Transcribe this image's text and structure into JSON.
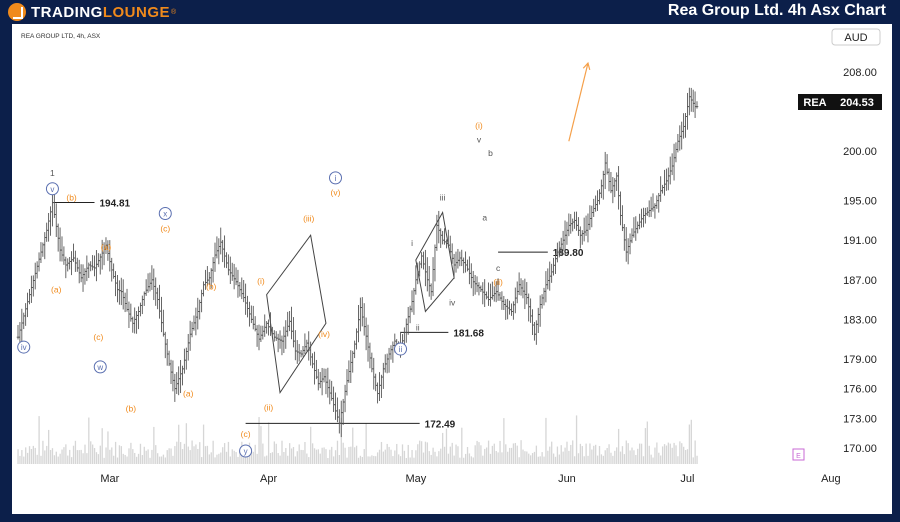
{
  "header": {
    "logo_part1": "TRADING",
    "logo_part2": "LOUNGE",
    "logo_tm": "®",
    "chart_title": "Rea Group Ltd. 4h Asx Chart"
  },
  "chart_data": {
    "type": "candlestick",
    "symbol_info": "REA GROUP LTD, 4h, ASX",
    "currency": "AUD",
    "last_price": {
      "symbol": "REA",
      "value": "204.53"
    },
    "y_ticks": [
      "208.00",
      "200.00",
      "195.00",
      "191.00",
      "187.00",
      "183.00",
      "179.00",
      "176.00",
      "173.00",
      "170.00"
    ],
    "y_tick_values": [
      208,
      200,
      195,
      191,
      187,
      183,
      179,
      176,
      173,
      170
    ],
    "x_ticks": [
      "Mar",
      "Apr",
      "May",
      "Jun",
      "Jul",
      "Aug"
    ],
    "ylim": [
      168.4,
      210.8
    ],
    "close_path": [
      [
        0,
        181.2
      ],
      [
        6,
        185.5
      ],
      [
        12,
        189.8
      ],
      [
        15,
        192.0
      ],
      [
        18,
        194.8
      ],
      [
        22,
        190.0
      ],
      [
        25,
        188.5
      ],
      [
        29,
        189.2
      ],
      [
        33,
        187.2
      ],
      [
        37,
        188.5
      ],
      [
        40,
        188.2
      ],
      [
        43,
        189.3
      ],
      [
        46,
        190.5
      ],
      [
        49,
        188.0
      ],
      [
        52,
        186.0
      ],
      [
        54,
        185.8
      ],
      [
        57,
        184.0
      ],
      [
        60,
        182.6
      ],
      [
        63,
        183.8
      ],
      [
        66,
        185.6
      ],
      [
        70,
        187.0
      ],
      [
        73,
        185.0
      ],
      [
        76,
        181.5
      ],
      [
        79,
        178.5
      ],
      [
        82,
        176.0
      ],
      [
        86,
        178.0
      ],
      [
        90,
        181.5
      ],
      [
        94,
        183.8
      ],
      [
        97,
        186.5
      ],
      [
        100,
        187.2
      ],
      [
        103,
        189.5
      ],
      [
        106,
        190.8
      ],
      [
        110,
        188.0
      ],
      [
        114,
        186.8
      ],
      [
        118,
        185.2
      ],
      [
        122,
        183.0
      ],
      [
        126,
        181.0
      ],
      [
        130,
        182.6
      ],
      [
        134,
        181.2
      ],
      [
        138,
        180.8
      ],
      [
        142,
        182.8
      ],
      [
        145,
        179.8
      ],
      [
        148,
        179.5
      ],
      [
        151,
        180.6
      ],
      [
        154,
        178.5
      ],
      [
        157,
        176.5
      ],
      [
        160,
        177.2
      ],
      [
        164,
        175.0
      ],
      [
        168,
        172.5
      ],
      [
        172,
        176.8
      ],
      [
        176,
        180.5
      ],
      [
        179,
        184.2
      ],
      [
        182,
        181.3
      ],
      [
        185,
        178.0
      ],
      [
        188,
        175.5
      ],
      [
        191,
        178.0
      ],
      [
        194,
        179.5
      ],
      [
        197,
        180.8
      ],
      [
        200,
        180.0
      ],
      [
        203,
        182.5
      ],
      [
        206,
        184.8
      ],
      [
        208,
        187.0
      ],
      [
        211,
        189.4
      ],
      [
        214,
        187.0
      ],
      [
        216,
        185.8
      ],
      [
        219,
        192.5
      ],
      [
        222,
        191.0
      ],
      [
        225,
        190.5
      ],
      [
        228,
        188.5
      ],
      [
        231,
        189.2
      ],
      [
        234,
        188.5
      ],
      [
        238,
        186.8
      ],
      [
        242,
        186.0
      ],
      [
        246,
        185.0
      ],
      [
        250,
        185.8
      ],
      [
        254,
        184.5
      ],
      [
        258,
        183.8
      ],
      [
        262,
        186.5
      ],
      [
        266,
        185.2
      ],
      [
        270,
        181.5
      ],
      [
        273,
        184.5
      ],
      [
        276,
        186.5
      ],
      [
        279,
        187.8
      ],
      [
        282,
        189.8
      ],
      [
        285,
        191.0
      ],
      [
        288,
        192.5
      ],
      [
        291,
        193.0
      ],
      [
        294,
        191.5
      ],
      [
        297,
        192.0
      ],
      [
        300,
        193.8
      ],
      [
        303,
        195.0
      ],
      [
        305,
        196.5
      ],
      [
        307,
        198.8
      ],
      [
        310,
        196.0
      ],
      [
        313,
        197.5
      ],
      [
        315,
        193.5
      ],
      [
        318,
        189.8
      ],
      [
        321,
        191.5
      ],
      [
        324,
        192.5
      ],
      [
        327,
        193.5
      ],
      [
        330,
        194.0
      ],
      [
        333,
        194.5
      ],
      [
        336,
        196.0
      ],
      [
        339,
        197.0
      ],
      [
        342,
        198.5
      ],
      [
        345,
        201.0
      ],
      [
        348,
        202.5
      ],
      [
        351,
        205.5
      ],
      [
        354,
        204.5
      ]
    ],
    "swing_levels": [
      {
        "label": "194.81",
        "value": 194.81
      },
      {
        "label": "172.49",
        "value": 172.49
      },
      {
        "label": "181.68",
        "value": 181.68
      },
      {
        "label": "189.80",
        "value": 189.8
      }
    ],
    "wave_labels": [
      {
        "text": "1",
        "style": "plain-gray",
        "x": 18,
        "y": 197.8
      },
      {
        "text": "v",
        "style": "circle-blue",
        "x": 18,
        "y": 196.2
      },
      {
        "text": "(b)",
        "style": "orange",
        "x": 28,
        "y": 195.3
      },
      {
        "text": "(a)",
        "style": "orange",
        "x": 20,
        "y": 186.0
      },
      {
        "text": "iv",
        "style": "circle-blue",
        "x": 3,
        "y": 180.2
      },
      {
        "text": "(a)",
        "style": "orange",
        "x": 46,
        "y": 190.3
      },
      {
        "text": "(c)",
        "style": "orange",
        "x": 42,
        "y": 181.2
      },
      {
        "text": "w",
        "style": "circle-blue",
        "x": 43,
        "y": 178.2
      },
      {
        "text": "(b)",
        "style": "orange",
        "x": 59,
        "y": 174.0
      },
      {
        "text": "x",
        "style": "circle-blue",
        "x": 77,
        "y": 193.7
      },
      {
        "text": "(c)",
        "style": "orange",
        "x": 77,
        "y": 192.2
      },
      {
        "text": "(a)",
        "style": "orange",
        "x": 89,
        "y": 175.5
      },
      {
        "text": "(b)",
        "style": "orange",
        "x": 101,
        "y": 186.3
      },
      {
        "text": "(c)",
        "style": "orange",
        "x": 119,
        "y": 171.4
      },
      {
        "text": "y",
        "style": "circle-blue",
        "x": 119,
        "y": 169.7
      },
      {
        "text": "(i)",
        "style": "orange",
        "x": 127,
        "y": 186.9
      },
      {
        "text": "(ii)",
        "style": "orange",
        "x": 131,
        "y": 174.1
      },
      {
        "text": "(iii)",
        "style": "orange",
        "x": 152,
        "y": 193.2
      },
      {
        "text": "(iv)",
        "style": "orange",
        "x": 160,
        "y": 181.5
      },
      {
        "text": "i",
        "style": "circle-blue",
        "x": 166,
        "y": 197.3
      },
      {
        "text": "(v)",
        "style": "orange",
        "x": 166,
        "y": 195.8
      },
      {
        "text": "i",
        "style": "plain-gray",
        "x": 206,
        "y": 190.7
      },
      {
        "text": "iii",
        "style": "plain-gray",
        "x": 222,
        "y": 195.3
      },
      {
        "text": "ii",
        "style": "plain-gray",
        "x": 209,
        "y": 182.2
      },
      {
        "text": "iv",
        "style": "plain-gray",
        "x": 227,
        "y": 184.7
      },
      {
        "text": "ii",
        "style": "circle-blue",
        "x": 200,
        "y": 180.0
      },
      {
        "text": "(i)",
        "style": "orange",
        "x": 241,
        "y": 202.6
      },
      {
        "text": "v",
        "style": "plain-gray",
        "x": 241,
        "y": 201.2
      },
      {
        "text": "b",
        "style": "plain-gray",
        "x": 247,
        "y": 199.8
      },
      {
        "text": "a",
        "style": "plain-gray",
        "x": 244,
        "y": 193.3
      },
      {
        "text": "c",
        "style": "plain-gray",
        "x": 251,
        "y": 188.2
      },
      {
        "text": "(ii)",
        "style": "orange",
        "x": 251,
        "y": 186.8
      }
    ],
    "projection_arrow": {
      "from": [
        288,
        201.0
      ],
      "to": [
        298,
        208.9
      ],
      "color": "#f5a04a"
    },
    "colors": {
      "orange": "#f08a1c",
      "blue_circle": "#5a6fb0",
      "candle": "#555555",
      "volume": "#d6d6d6",
      "header_bg": "#0c1f4a"
    }
  }
}
